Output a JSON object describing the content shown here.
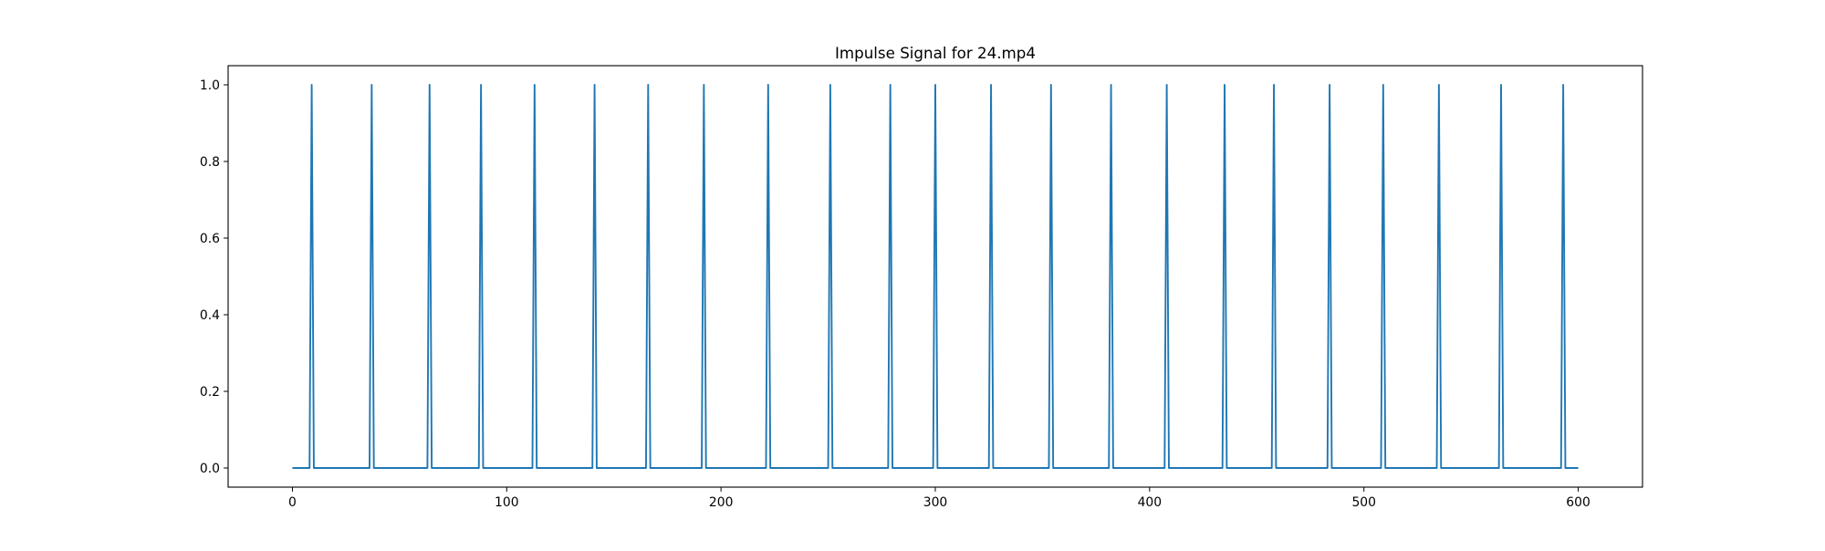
{
  "chart_data": {
    "type": "line",
    "title": "Impulse Signal for 24.mp4",
    "xlabel": "",
    "ylabel": "",
    "xlim": [
      -30,
      630
    ],
    "ylim": [
      -0.05,
      1.05
    ],
    "x_range": [
      0,
      600
    ],
    "baseline_value": 0,
    "impulse_value": 1,
    "impulse_x": [
      9,
      37,
      64,
      88,
      113,
      141,
      166,
      192,
      222,
      251,
      279,
      300,
      326,
      354,
      382,
      408,
      435,
      458,
      484,
      509,
      535,
      564,
      593
    ],
    "xticks": [
      0,
      100,
      200,
      300,
      400,
      500,
      600
    ],
    "xtick_labels": [
      "0",
      "100",
      "200",
      "300",
      "400",
      "500",
      "600"
    ],
    "yticks": [
      0.0,
      0.2,
      0.4,
      0.6,
      0.8,
      1.0
    ],
    "ytick_labels": [
      "0.0",
      "0.2",
      "0.4",
      "0.6",
      "0.8",
      "1.0"
    ],
    "grid": false,
    "legend": "none",
    "line_color": "#1f77b4"
  }
}
